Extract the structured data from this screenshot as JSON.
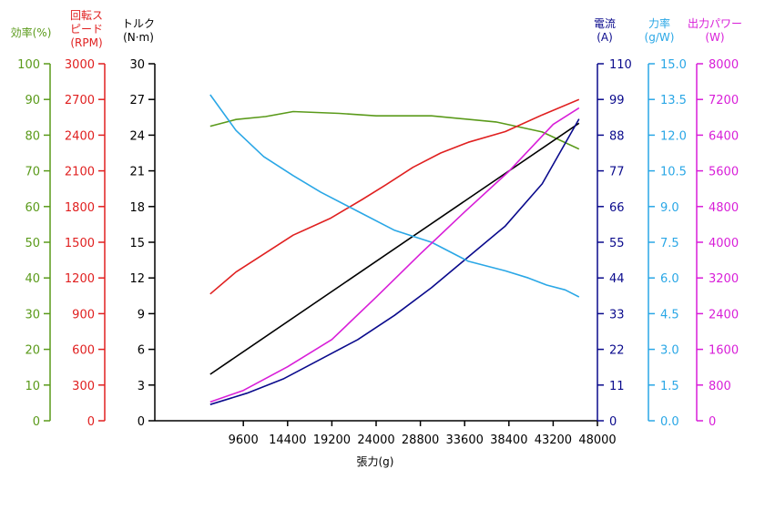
{
  "chart_data": {
    "type": "line",
    "xlabel": "張力(g)",
    "x_ticks": [
      9600,
      14400,
      19200,
      24000,
      28800,
      33600,
      38400,
      43200,
      48000
    ],
    "x": [
      6000,
      9600,
      14400,
      19200,
      24000,
      28800,
      33600,
      38400,
      43200,
      46000
    ],
    "axes": [
      {
        "id": "eff",
        "title_lines": [
          "効率(%)"
        ],
        "color": "#5a9a1a",
        "ticks": [
          "0",
          "10",
          "20",
          "30",
          "40",
          "50",
          "60",
          "70",
          "80",
          "90",
          "100"
        ],
        "ylim": [
          0,
          100
        ],
        "side": "left"
      },
      {
        "id": "rpm",
        "title_lines": [
          "回転ス",
          "ピード",
          "(RPM)"
        ],
        "color": "#e02020",
        "ticks": [
          "0",
          "300",
          "600",
          "900",
          "1200",
          "1500",
          "1800",
          "2100",
          "2400",
          "2700",
          "3000"
        ],
        "ylim": [
          0,
          3000
        ],
        "side": "left"
      },
      {
        "id": "torque",
        "title_lines": [
          "トルク",
          "(N·m)"
        ],
        "color": "#000000",
        "ticks": [
          "0",
          "3",
          "6",
          "9",
          "12",
          "15",
          "18",
          "21",
          "24",
          "27",
          "30"
        ],
        "ylim": [
          0,
          30
        ],
        "side": "left"
      },
      {
        "id": "current",
        "title_lines": [
          "電流",
          "(A)"
        ],
        "color": "#0a0a8c",
        "ticks": [
          "0",
          "11",
          "22",
          "33",
          "44",
          "55",
          "66",
          "77",
          "88",
          "99",
          "110"
        ],
        "ylim": [
          0,
          110
        ],
        "side": "right"
      },
      {
        "id": "force",
        "title_lines": [
          "力率",
          "(g/W)"
        ],
        "color": "#2aa7e6",
        "ticks": [
          "0.0",
          "1.5",
          "3.0",
          "4.5",
          "6.0",
          "7.5",
          "9.0",
          "10.5",
          "12.0",
          "13.5",
          "15.0"
        ],
        "ylim": [
          0,
          15
        ],
        "side": "right"
      },
      {
        "id": "power",
        "title_lines": [
          "出力パワー",
          "(W)"
        ],
        "color": "#d81ed8",
        "ticks": [
          "0",
          "800",
          "1600",
          "2400",
          "3200",
          "4000",
          "4800",
          "5600",
          "6400",
          "7200",
          "8000"
        ],
        "ylim": [
          0,
          8000
        ],
        "side": "right"
      }
    ],
    "series": [
      {
        "axis": "eff",
        "color": "#5a9a1a",
        "points": [
          [
            6000,
            82.5
          ],
          [
            8800,
            84.4
          ],
          [
            12000,
            85.2
          ],
          [
            15000,
            86.6
          ],
          [
            20000,
            86.1
          ],
          [
            24000,
            85.4
          ],
          [
            30000,
            85.4
          ],
          [
            37000,
            83.7
          ],
          [
            42000,
            80.9
          ],
          [
            46000,
            76.1
          ]
        ]
      },
      {
        "axis": "rpm",
        "color": "#e02020",
        "points": [
          [
            6000,
            1065
          ],
          [
            8800,
            1250
          ],
          [
            12000,
            1410
          ],
          [
            15000,
            1560
          ],
          [
            19000,
            1700
          ],
          [
            22500,
            1860
          ],
          [
            25000,
            1980
          ],
          [
            28000,
            2130
          ],
          [
            31000,
            2250
          ],
          [
            34000,
            2340
          ],
          [
            38000,
            2430
          ],
          [
            42000,
            2570
          ],
          [
            46000,
            2700
          ]
        ]
      },
      {
        "axis": "torque",
        "color": "#000000",
        "points": [
          [
            6000,
            3.9
          ],
          [
            46000,
            25.0
          ]
        ]
      },
      {
        "axis": "current",
        "color": "#0a0a8c",
        "points": [
          [
            6000,
            5
          ],
          [
            10000,
            8.5
          ],
          [
            14000,
            13
          ],
          [
            18000,
            19
          ],
          [
            22000,
            25
          ],
          [
            26000,
            32.5
          ],
          [
            30000,
            41
          ],
          [
            34000,
            50.5
          ],
          [
            38000,
            60
          ],
          [
            42000,
            73
          ],
          [
            46000,
            93
          ]
        ]
      },
      {
        "axis": "force",
        "color": "#2aa7e6",
        "points": [
          [
            6000,
            13.7
          ],
          [
            8800,
            12.2
          ],
          [
            11800,
            11.1
          ],
          [
            15000,
            10.3
          ],
          [
            18000,
            9.6
          ],
          [
            22000,
            8.8
          ],
          [
            26000,
            8.0
          ],
          [
            30000,
            7.5
          ],
          [
            34000,
            6.7
          ],
          [
            38000,
            6.3
          ],
          [
            40500,
            6.0
          ],
          [
            42500,
            5.7
          ],
          [
            44500,
            5.5
          ],
          [
            46000,
            5.2
          ]
        ]
      },
      {
        "axis": "power",
        "color": "#d81ed8",
        "points": [
          [
            6000,
            420
          ],
          [
            9600,
            680
          ],
          [
            14400,
            1210
          ],
          [
            19200,
            1820
          ],
          [
            24000,
            2770
          ],
          [
            28800,
            3740
          ],
          [
            33600,
            4680
          ],
          [
            38400,
            5590
          ],
          [
            43200,
            6640
          ],
          [
            46000,
            7010
          ]
        ]
      }
    ]
  }
}
